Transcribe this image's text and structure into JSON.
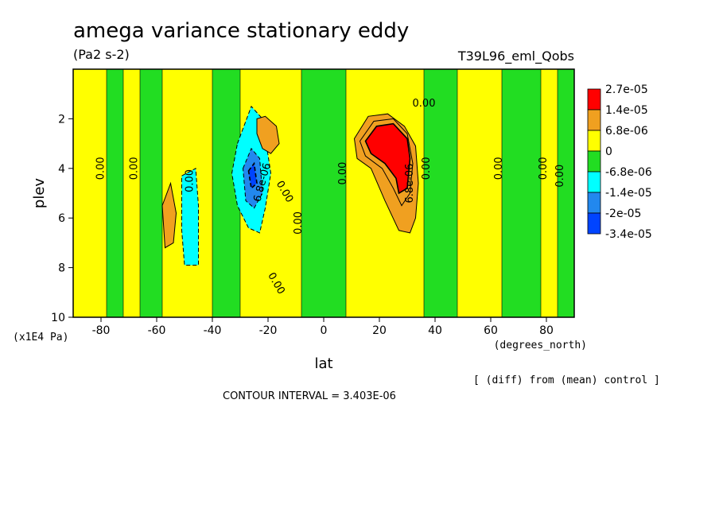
{
  "chart_data": {
    "type": "heatmap",
    "title": "amega variance stationary eddy",
    "units": "(Pa2 s-2)",
    "run_name": "T39L96_eml_Qobs",
    "xlabel": "lat",
    "x_units": "(degrees_north)",
    "ylabel": "plev",
    "y_units": "(x1E4 Pa)",
    "xlim": [
      -90,
      90
    ],
    "ylim": [
      10,
      0
    ],
    "x_ticks": [
      "-80",
      "-60",
      "-40",
      "-20",
      "0",
      "20",
      "40",
      "60",
      "80"
    ],
    "x_tick_values": [
      -80,
      -60,
      -40,
      -20,
      0,
      20,
      40,
      60,
      80
    ],
    "y_ticks": [
      "2",
      "4",
      "6",
      "8",
      "10"
    ],
    "y_tick_values": [
      2,
      4,
      6,
      8,
      10
    ],
    "note": "[ (diff) from (mean) control ]",
    "contour_interval": "CONTOUR INTERVAL = 3.403E-06",
    "legend": [
      {
        "label": "2.7e-05",
        "color": "#ff0000"
      },
      {
        "label": "1.4e-05",
        "color": "#f0a020"
      },
      {
        "label": "6.8e-06",
        "color": "#f0a020"
      },
      {
        "label": "0",
        "color": "#ffff00"
      },
      {
        "label": "-6.8e-06",
        "color": "#22dd22"
      },
      {
        "label": "-1.4e-05",
        "color": "#00ffff"
      },
      {
        "label": "-2e-05",
        "color": "#2288ee"
      },
      {
        "label": "-3.4e-05",
        "color": "#0044ff"
      }
    ],
    "legend_swatches": [
      "#ff0000",
      "#f0a020",
      "#ffff00",
      "#22dd22",
      "#00ffff",
      "#2288ee",
      "#0044ff"
    ],
    "contour_labels": [
      {
        "text": "0.00",
        "lat": 36,
        "plev": 1.5,
        "rot": 0
      },
      {
        "text": "0.00",
        "lat": -79,
        "plev": 4.0,
        "rot": -90
      },
      {
        "text": "0.00",
        "lat": -67,
        "plev": 4.0,
        "rot": -90
      },
      {
        "text": "0.00",
        "lat": -47,
        "plev": 4.5,
        "rot": -90
      },
      {
        "text": "0.00",
        "lat": -15,
        "plev": 5.0,
        "rot": 60
      },
      {
        "text": "0.00",
        "lat": -8,
        "plev": 6.2,
        "rot": -90
      },
      {
        "text": "0.00",
        "lat": 8,
        "plev": 4.2,
        "rot": -90
      },
      {
        "text": "0.00",
        "lat": -18,
        "plev": 8.7,
        "rot": 60
      },
      {
        "text": "0.00",
        "lat": 38,
        "plev": 4.0,
        "rot": -90
      },
      {
        "text": "0.00",
        "lat": 64,
        "plev": 4.0,
        "rot": -90
      },
      {
        "text": "0.00",
        "lat": 80,
        "plev": 4.0,
        "rot": -90
      },
      {
        "text": "0.00",
        "lat": 86,
        "plev": 4.3,
        "rot": -90
      },
      {
        "text": "6.8e-06",
        "lat": 32,
        "plev": 4.6,
        "rot": -90
      },
      {
        "text": "6.8e-06",
        "lat": -21,
        "plev": 4.6,
        "rot": -75
      }
    ],
    "regions": [
      {
        "level": "pos1",
        "pts": [
          [
            -58,
            5.5
          ],
          [
            -55,
            4.6
          ],
          [
            -53,
            5.8
          ],
          [
            -54,
            7.0
          ],
          [
            -57,
            7.2
          ]
        ]
      },
      {
        "level": "neg1",
        "pts": [
          [
            -51,
            4.3
          ],
          [
            -46,
            4.0
          ],
          [
            -45,
            5.5
          ],
          [
            -45,
            7.9
          ],
          [
            -50,
            7.9
          ],
          [
            -51,
            6.5
          ]
        ]
      },
      {
        "level": "neg1",
        "pts": [
          [
            -31,
            3.0
          ],
          [
            -26,
            1.5
          ],
          [
            -22,
            2.0
          ],
          [
            -19,
            4.2
          ],
          [
            -21,
            5.6
          ],
          [
            -23,
            6.6
          ],
          [
            -27,
            6.4
          ],
          [
            -31,
            5.5
          ],
          [
            -33,
            4.2
          ]
        ]
      },
      {
        "level": "neg2",
        "pts": [
          [
            -29,
            4.0
          ],
          [
            -26,
            3.2
          ],
          [
            -23,
            3.6
          ],
          [
            -22,
            5.0
          ],
          [
            -25,
            5.6
          ],
          [
            -28,
            5.3
          ]
        ]
      },
      {
        "level": "neg3",
        "pts": [
          [
            -27,
            4.1
          ],
          [
            -25,
            3.8
          ],
          [
            -24,
            4.6
          ],
          [
            -26,
            4.8
          ]
        ]
      },
      {
        "level": "pos1",
        "pts": [
          [
            -24,
            2.0
          ],
          [
            -21,
            1.9
          ],
          [
            -17,
            2.3
          ],
          [
            -16,
            3.0
          ],
          [
            -19,
            3.4
          ],
          [
            -22,
            3.2
          ],
          [
            -24,
            2.6
          ]
        ]
      },
      {
        "level": "pos1",
        "pts": [
          [
            11,
            2.8
          ],
          [
            16,
            1.9
          ],
          [
            23,
            1.8
          ],
          [
            29,
            2.3
          ],
          [
            33,
            3.1
          ],
          [
            34,
            4.6
          ],
          [
            33,
            6.0
          ],
          [
            31,
            6.6
          ],
          [
            27,
            6.5
          ],
          [
            22,
            5.3
          ],
          [
            17,
            4.0
          ],
          [
            12,
            3.6
          ]
        ]
      },
      {
        "level": "pos2",
        "pts": [
          [
            13,
            2.9
          ],
          [
            18,
            2.1
          ],
          [
            25,
            2.0
          ],
          [
            30,
            2.6
          ],
          [
            32,
            3.8
          ],
          [
            31,
            5.0
          ],
          [
            28,
            5.5
          ],
          [
            25,
            4.8
          ],
          [
            21,
            4.0
          ],
          [
            15,
            3.5
          ]
        ]
      },
      {
        "level": "pos3",
        "pts": [
          [
            15,
            2.9
          ],
          [
            19,
            2.3
          ],
          [
            25,
            2.2
          ],
          [
            30,
            2.8
          ],
          [
            31,
            3.6
          ],
          [
            30,
            4.8
          ],
          [
            27,
            5.0
          ],
          [
            26,
            4.4
          ],
          [
            22,
            3.8
          ],
          [
            17,
            3.4
          ]
        ]
      }
    ],
    "background_bands": [
      {
        "level": "yellow",
        "lat": [
          -90,
          90
        ]
      },
      {
        "level": "green",
        "lat": [
          -78,
          -72
        ]
      },
      {
        "level": "green",
        "lat": [
          -66,
          -58
        ]
      },
      {
        "level": "green",
        "lat": [
          -40,
          -30
        ]
      },
      {
        "level": "green",
        "lat": [
          -8,
          8
        ]
      },
      {
        "level": "green",
        "lat": [
          36,
          48
        ]
      },
      {
        "level": "green",
        "lat": [
          64,
          78
        ]
      },
      {
        "level": "green",
        "lat": [
          84,
          90
        ]
      }
    ]
  }
}
